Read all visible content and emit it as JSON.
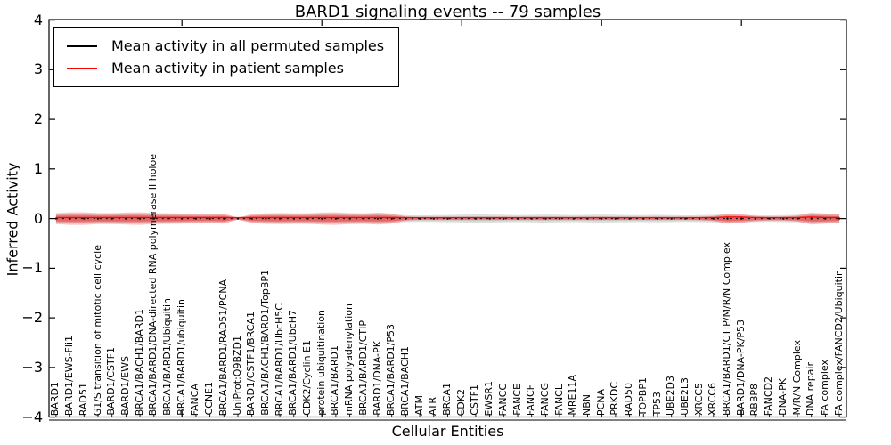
{
  "title": "BARD1 signaling events -- 79 samples",
  "legend": {
    "items": [
      {
        "label": "Mean activity in all permuted samples",
        "color": "#000000"
      },
      {
        "label": "Mean activity in patient samples",
        "color": "#ff0000"
      }
    ],
    "position": "upper left"
  },
  "axes": {
    "y_label": "Inferred Activity",
    "x_label": "Cellular Entities",
    "y_tick_labels": [
      "4",
      "3",
      "2",
      "1",
      "0",
      "−1",
      "−2",
      "−3",
      "−4"
    ],
    "y_tick_values": [
      4,
      3,
      2,
      1,
      0,
      -1,
      -2,
      -3,
      -4
    ],
    "x_major_tick_values": [
      10,
      20,
      30,
      40,
      50
    ]
  },
  "colors": {
    "patient_line": "#ff0000",
    "permuted_line": "#000000",
    "patient_band": "rgba(255,0,0,0.25)",
    "permuted_band": "rgba(0,0,0,0.13)",
    "background": "#ffffff"
  },
  "chart_data": {
    "type": "line",
    "title": "BARD1 signaling events -- 79 samples",
    "xlabel": "Cellular Entities",
    "ylabel": "Inferred Activity",
    "ylim": [
      -4,
      4
    ],
    "grid": false,
    "legend_position": "upper left",
    "categories": [
      "BARD1",
      "BARD1/EWS-Fli1",
      "RAD51",
      "G1/S transition of mitotic cell cycle",
      "BARD1/CSTF1",
      "BARD1/EWS",
      "BRCA1/BACH1/BARD1",
      "BRCA1/BARD1/DNA-directed RNA polymerase II holoe",
      "BRCA1/BARD1/Ubiquitin",
      "BRCA1/BARD1/ubiquitin",
      "FANCA",
      "CCNE1",
      "BRCA1/BARD1/RAD51/PCNA",
      "UniProt:Q9BZD1",
      "BARD1/CSTF1/BRCA1",
      "BRCA1/BACH1/BARD1/TopBP1",
      "BRCA1/BARD1/UbcH5C",
      "BRCA1/BARD1/UbcH7",
      "CDK2/Cyclin E1",
      "protein ubiquitination",
      "BRCA1/BARD1",
      "mRNA polyadenylation",
      "BRCA1/BARD1/CTIP",
      "BARD1/DNA-PK",
      "BRCA1/BARD1/P53",
      "BRCA1/BACH1",
      "ATM",
      "ATR",
      "BRCA1",
      "CDK2",
      "CSTF1",
      "EWSR1",
      "FANCC",
      "FANCE",
      "FANCF",
      "FANCG",
      "FANCL",
      "MRE11A",
      "NBN",
      "PCNA",
      "PRKDC",
      "RAD50",
      "TOPBP1",
      "TP53",
      "UBE2D3",
      "UBE2L3",
      "XRCC5",
      "XRCC6",
      "BRCA1/BARD1/CTIP/M/R/N Complex",
      "BARD1/DNA-PK/P53",
      "RBBP8",
      "FANCD2",
      "DNA-PK",
      "M/R/N Complex",
      "DNA repair",
      "FA complex",
      "FA complex/FANCD2/Ubiquitin"
    ],
    "series": [
      {
        "name": "Mean activity in all permuted samples",
        "color": "#000000",
        "style": "dotted",
        "values": [
          0,
          0,
          0,
          0,
          0,
          0,
          0,
          0,
          0,
          0,
          0,
          0,
          0,
          0,
          0,
          0,
          0,
          0,
          0,
          0,
          0,
          0,
          0,
          0,
          0,
          0,
          0,
          0,
          0,
          0,
          0,
          0,
          0,
          0,
          0,
          0,
          0,
          0,
          0,
          0,
          0,
          0,
          0,
          0,
          0,
          0,
          0,
          0,
          0,
          0,
          0,
          0,
          0,
          0,
          0,
          0,
          0
        ]
      },
      {
        "name": "Mean activity in patient samples",
        "color": "#ff0000",
        "style": "solid",
        "values": [
          0.02,
          0.02,
          0.02,
          0.02,
          0.02,
          0.02,
          0.02,
          0.02,
          0.02,
          0.02,
          0.02,
          0.02,
          0.02,
          0.02,
          0.02,
          0.02,
          0.02,
          0.02,
          0.02,
          0.02,
          0.02,
          0.02,
          0.02,
          0.02,
          0.02,
          0.02,
          0.02,
          0.02,
          0.02,
          0.02,
          0.02,
          0.02,
          0.02,
          0.02,
          0.02,
          0.02,
          0.02,
          0.02,
          0.02,
          0.02,
          0.02,
          0.02,
          0.02,
          0.02,
          0.02,
          0.02,
          0.02,
          0.02,
          0.03,
          0.03,
          0.02,
          0.02,
          0.02,
          0.02,
          0.03,
          0.02,
          0.02
        ]
      }
    ],
    "bands": [
      {
        "name": "patient-samples-band",
        "color": "#ff0000",
        "half_widths": [
          0.11,
          0.125,
          0.125,
          0.11,
          0.11,
          0.12,
          0.125,
          0.11,
          0.105,
          0.1,
          0.09,
          0.09,
          0.1,
          0.02,
          0.09,
          0.105,
          0.11,
          0.105,
          0.105,
          0.12,
          0.125,
          0.11,
          0.105,
          0.12,
          0.1,
          0.04,
          0.025,
          0.025,
          0.025,
          0.025,
          0.025,
          0.025,
          0.025,
          0.025,
          0.025,
          0.025,
          0.025,
          0.025,
          0.025,
          0.025,
          0.025,
          0.025,
          0.025,
          0.025,
          0.025,
          0.025,
          0.03,
          0.05,
          0.1,
          0.085,
          0.05,
          0.035,
          0.04,
          0.06,
          0.12,
          0.1,
          0.085
        ]
      },
      {
        "name": "permuted-samples-band",
        "color": "#999999",
        "half_widths": [
          0.08,
          0.085,
          0.085,
          0.08,
          0.085,
          0.09,
          0.085,
          0.08,
          0.08,
          0.078,
          0.075,
          0.075,
          0.078,
          0.018,
          0.07,
          0.078,
          0.08,
          0.078,
          0.08,
          0.085,
          0.085,
          0.08,
          0.078,
          0.085,
          0.078,
          0.07,
          0.065,
          0.068,
          0.072,
          0.078,
          0.085,
          0.08,
          0.075,
          0.07,
          0.075,
          0.08,
          0.075,
          0.07,
          0.075,
          0.08,
          0.075,
          0.07,
          0.07,
          0.075,
          0.07,
          0.065,
          0.07,
          0.075,
          0.08,
          0.075,
          0.07,
          0.065,
          0.07,
          0.075,
          0.085,
          0.09,
          0.08
        ]
      }
    ]
  }
}
